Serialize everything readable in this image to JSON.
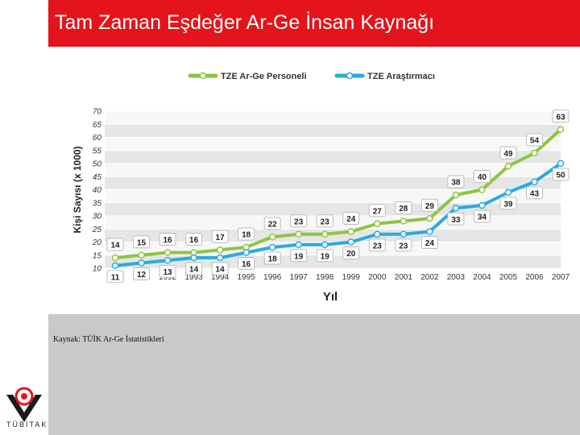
{
  "slide": {
    "title": "Tam Zaman Eşdeğer Ar-Ge İnsan Kaynağı",
    "source": "Kaynak: TÜİK Ar-Ge İstatistikleri",
    "logo_text": "TÜBİTAK"
  },
  "colors": {
    "title_bg": "#e5131b",
    "series_green": "#8dc63f",
    "series_blue": "#29abe2"
  },
  "chart_data": {
    "type": "line",
    "xlabel": "Yıl",
    "ylabel": "Kişi Sayısı (x 1000)",
    "ylim": [
      10,
      70
    ],
    "yticks": [
      10,
      15,
      20,
      25,
      30,
      35,
      40,
      45,
      50,
      55,
      60,
      65,
      70
    ],
    "grid": true,
    "legend_position": "top",
    "x": [
      "1990",
      "1991",
      "1992",
      "1993",
      "1994",
      "1995",
      "1996",
      "1997",
      "1998",
      "1999",
      "2000",
      "2001",
      "2002",
      "2003",
      "2004",
      "2005",
      "2006",
      "2007"
    ],
    "series": [
      {
        "name": "TZE Ar-Ge Personeli",
        "color": "#8dc63f",
        "values": [
          14,
          15,
          16,
          16,
          17,
          18,
          22,
          23,
          23,
          24,
          27,
          28,
          29,
          38,
          40,
          49,
          54,
          63
        ]
      },
      {
        "name": "TZE Araştırmacı",
        "color": "#29abe2",
        "values": [
          11,
          12,
          13,
          14,
          14,
          16,
          18,
          19,
          19,
          20,
          23,
          23,
          24,
          33,
          34,
          39,
          43,
          50
        ]
      }
    ]
  }
}
